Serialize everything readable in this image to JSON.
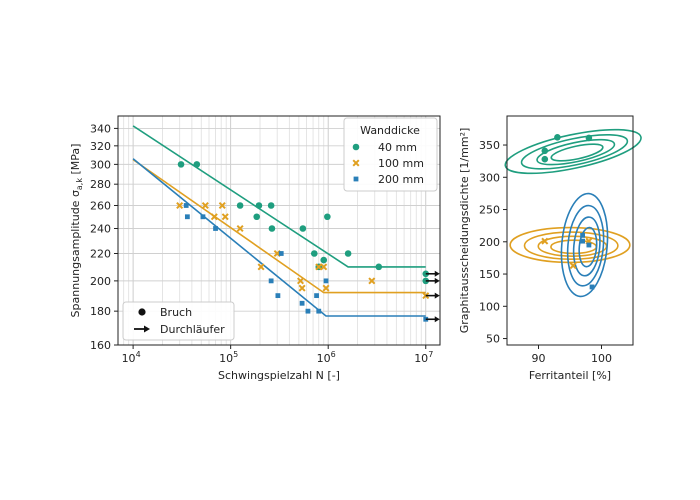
{
  "colors": {
    "40mm": "#1f9e7f",
    "100mm": "#e0a021",
    "200mm": "#2a7fb8"
  },
  "legend_main": {
    "title": "Wanddicke",
    "entries": [
      {
        "label": "40 mm",
        "marker": "circle",
        "color_key": "40mm"
      },
      {
        "label": "100 mm",
        "marker": "x",
        "color_key": "100mm"
      },
      {
        "label": "200 mm",
        "marker": "square",
        "color_key": "200mm"
      }
    ]
  },
  "legend_type": {
    "entries": [
      {
        "label": "Bruch",
        "marker": "dot"
      },
      {
        "label": "Durchläufer",
        "marker": "arrow"
      }
    ]
  },
  "chart_data": [
    {
      "type": "scatter",
      "xlabel": "Schwingspielzahl N [-]",
      "ylabel": "Spannungsamplitude σ_a,k [MPa]",
      "x_scale": "log",
      "y_scale": "log",
      "xlim": [
        7000,
        14000000
      ],
      "ylim": [
        160,
        355
      ],
      "x_ticks": [
        {
          "value": 10000,
          "base": "10",
          "exp": "4"
        },
        {
          "value": 100000,
          "base": "10",
          "exp": "5"
        },
        {
          "value": 1000000,
          "base": "10",
          "exp": "6"
        },
        {
          "value": 10000000,
          "base": "10",
          "exp": "7"
        }
      ],
      "y_ticks": [
        160,
        180,
        200,
        220,
        240,
        260,
        280,
        300,
        320,
        340
      ],
      "grid": true,
      "series": [
        {
          "name": "40 mm",
          "color_key": "40mm",
          "marker": "circle",
          "points": [
            [
              31000,
              300
            ],
            [
              45000,
              300
            ],
            [
              125000,
              260
            ],
            [
              185000,
              250
            ],
            [
              195000,
              260
            ],
            [
              260000,
              260
            ],
            [
              265000,
              240
            ],
            [
              550000,
              240
            ],
            [
              720000,
              220
            ],
            [
              800000,
              210
            ],
            [
              900000,
              215
            ],
            [
              980000,
              250
            ],
            [
              1600000,
              220
            ],
            [
              3300000,
              210
            ]
          ],
          "runouts": [
            [
              10000000,
              205
            ],
            [
              10000000,
              200
            ]
          ],
          "curve": [
            [
              10000,
              343
            ],
            [
              1600000,
              210
            ],
            [
              10000000,
              210
            ]
          ]
        },
        {
          "name": "100 mm",
          "color_key": "100mm",
          "marker": "x",
          "points": [
            [
              30000,
              260
            ],
            [
              55000,
              260
            ],
            [
              68000,
              250
            ],
            [
              82000,
              260
            ],
            [
              88000,
              250
            ],
            [
              125000,
              240
            ],
            [
              205000,
              210
            ],
            [
              300000,
              220
            ],
            [
              520000,
              200
            ],
            [
              540000,
              195
            ],
            [
              800000,
              210
            ],
            [
              900000,
              210
            ],
            [
              950000,
              195
            ],
            [
              2800000,
              200
            ]
          ],
          "runouts": [
            [
              10000000,
              190
            ]
          ],
          "curve": [
            [
              10000,
              305
            ],
            [
              900000,
              192
            ],
            [
              10000000,
              192
            ]
          ]
        },
        {
          "name": "200 mm",
          "color_key": "200mm",
          "marker": "square",
          "points": [
            [
              35000,
              260
            ],
            [
              36000,
              250
            ],
            [
              52000,
              250
            ],
            [
              70000,
              240
            ],
            [
              260000,
              200
            ],
            [
              305000,
              190
            ],
            [
              330000,
              220
            ],
            [
              540000,
              185
            ],
            [
              620000,
              180
            ],
            [
              760000,
              190
            ],
            [
              800000,
              180
            ],
            [
              950000,
              200
            ]
          ],
          "runouts": [
            [
              10000000,
              175
            ]
          ],
          "curve": [
            [
              10000,
              306
            ],
            [
              950000,
              177
            ],
            [
              10000000,
              177
            ]
          ]
        }
      ]
    },
    {
      "type": "scatter",
      "xlabel": "Ferritanteil [%]",
      "ylabel": "Graphitausscheidungsdichte [1/mm²]",
      "xlim": [
        85,
        105
      ],
      "ylim": [
        40,
        395
      ],
      "x_ticks": [
        90,
        100
      ],
      "y_ticks": [
        50,
        100,
        150,
        200,
        250,
        300,
        350
      ],
      "grid": false,
      "series": [
        {
          "name": "40 mm",
          "color_key": "40mm",
          "marker": "circle",
          "points": [
            [
              91,
              341
            ],
            [
              91,
              328
            ],
            [
              93,
              362
            ],
            [
              98,
              361
            ]
          ],
          "kde": {
            "cx": 95.5,
            "cy": 340,
            "rx": 11,
            "ry": 26,
            "rot": -12
          }
        },
        {
          "name": "100 mm",
          "color_key": "100mm",
          "marker": "x",
          "points": [
            [
              91,
              201
            ],
            [
              95.5,
              163
            ],
            [
              98,
              201
            ]
          ],
          "kde": {
            "cx": 95,
            "cy": 195,
            "rx": 9.5,
            "ry": 27,
            "rot": 0
          }
        },
        {
          "name": "200 mm",
          "color_key": "200mm",
          "marker": "square",
          "points": [
            [
              97,
              210
            ],
            [
              97,
              201
            ],
            [
              98,
              195
            ],
            [
              98.5,
              130
            ]
          ],
          "kde": {
            "cx": 97.3,
            "cy": 195,
            "rx": 3.6,
            "ry": 80,
            "rot": 5
          }
        }
      ]
    }
  ]
}
